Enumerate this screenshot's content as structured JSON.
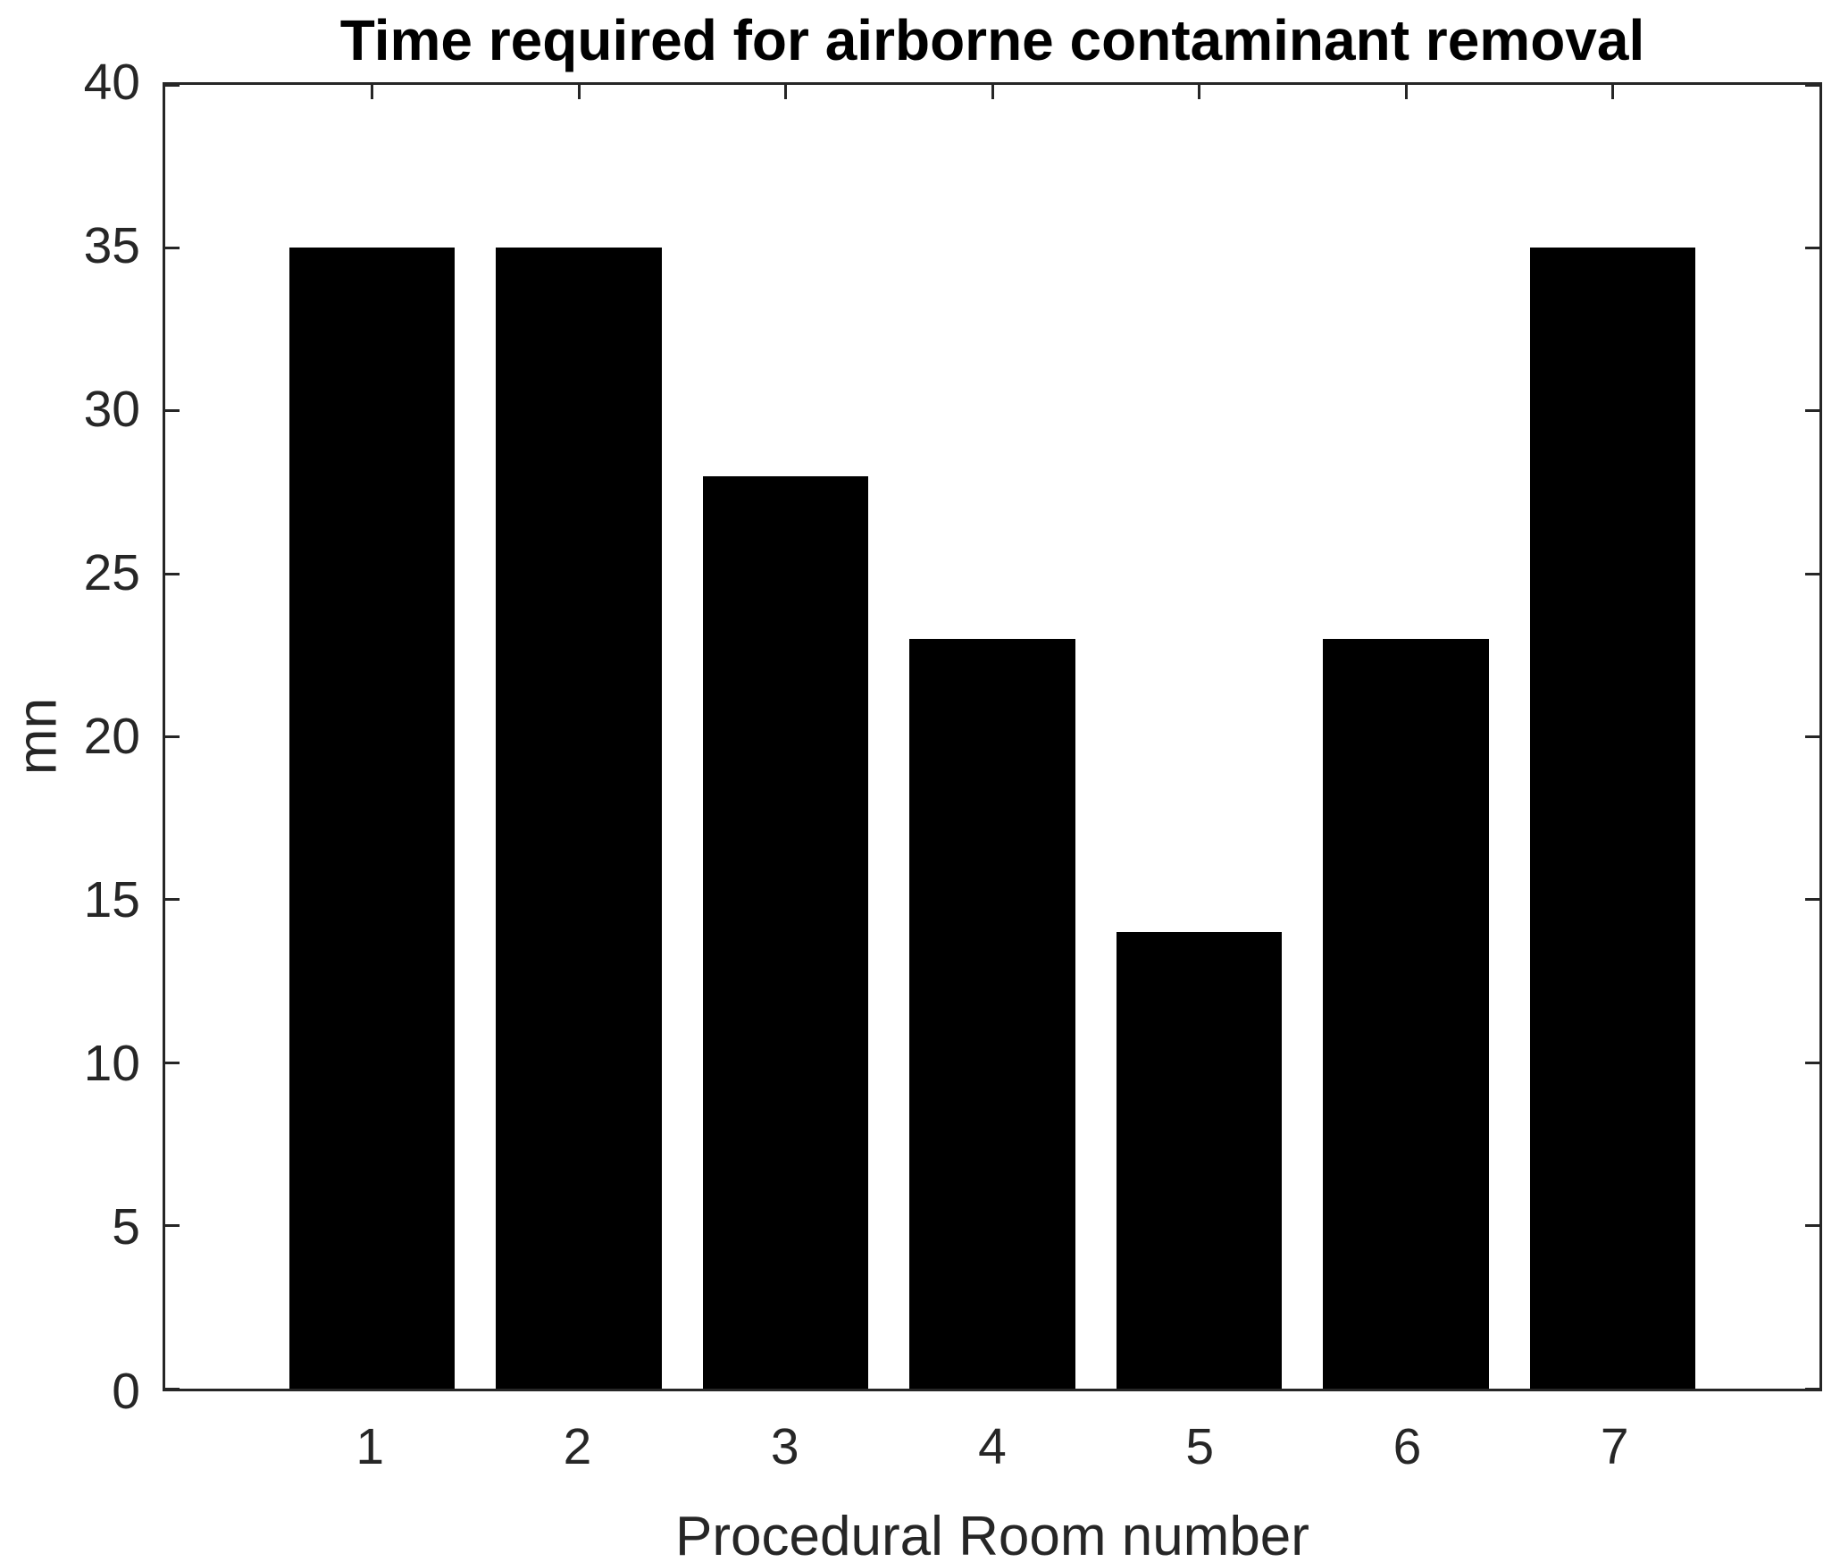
{
  "chart_data": {
    "type": "bar",
    "title": "Time required for airborne contaminant removal",
    "xlabel": "Procedural Room number",
    "ylabel": "mn",
    "categories": [
      "1",
      "2",
      "3",
      "4",
      "5",
      "6",
      "7"
    ],
    "values": [
      35,
      35,
      28,
      23,
      14,
      23,
      35
    ],
    "xlim": [
      0,
      8
    ],
    "ylim": [
      0,
      40
    ],
    "yticks": [
      0,
      5,
      10,
      15,
      20,
      25,
      30,
      35,
      40
    ],
    "bar_width_units": 0.8,
    "bar_color": "#000000",
    "axis_color": "#262626",
    "title_color": "#000000",
    "tick_label_color": "#262626",
    "background_color": "#ffffff",
    "grid": false,
    "legend": "none",
    "box": "on",
    "tick_direction": "in"
  }
}
